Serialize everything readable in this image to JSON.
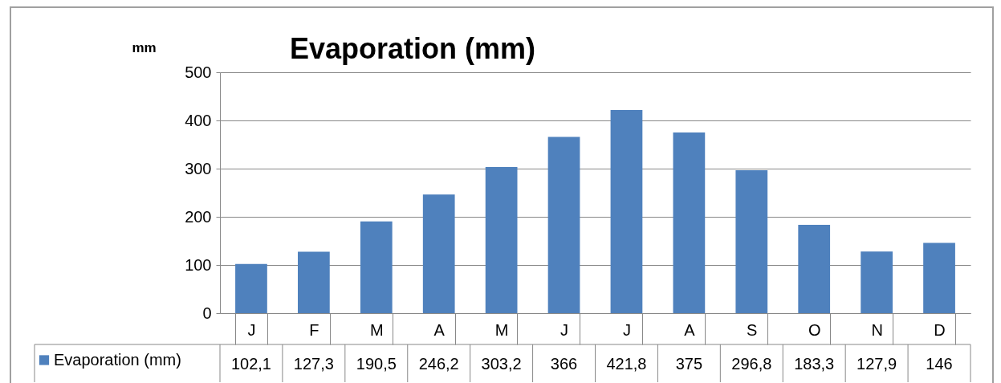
{
  "chart_data": {
    "type": "bar",
    "title": "Evaporation (mm)",
    "ylabel": "mm",
    "categories": [
      "J",
      "F",
      "M",
      "A",
      "M",
      "J",
      "J",
      "A",
      "S",
      "O",
      "N",
      "D"
    ],
    "series": [
      {
        "name": "Evaporation (mm)",
        "color": "#4f81bd",
        "values": [
          102.1,
          127.3,
          190.5,
          246.2,
          303.2,
          366,
          421.8,
          375,
          296.8,
          183.3,
          127.9,
          146
        ],
        "value_labels": [
          "102,1",
          "127,3",
          "190,5",
          "246,2",
          "303,2",
          "366",
          "421,8",
          "375",
          "296,8",
          "183,3",
          "127,9",
          "146"
        ]
      }
    ],
    "ylim": [
      0,
      500
    ],
    "yticks": [
      0,
      100,
      200,
      300,
      400,
      500
    ],
    "grid": "y",
    "legend": "bottom left"
  }
}
